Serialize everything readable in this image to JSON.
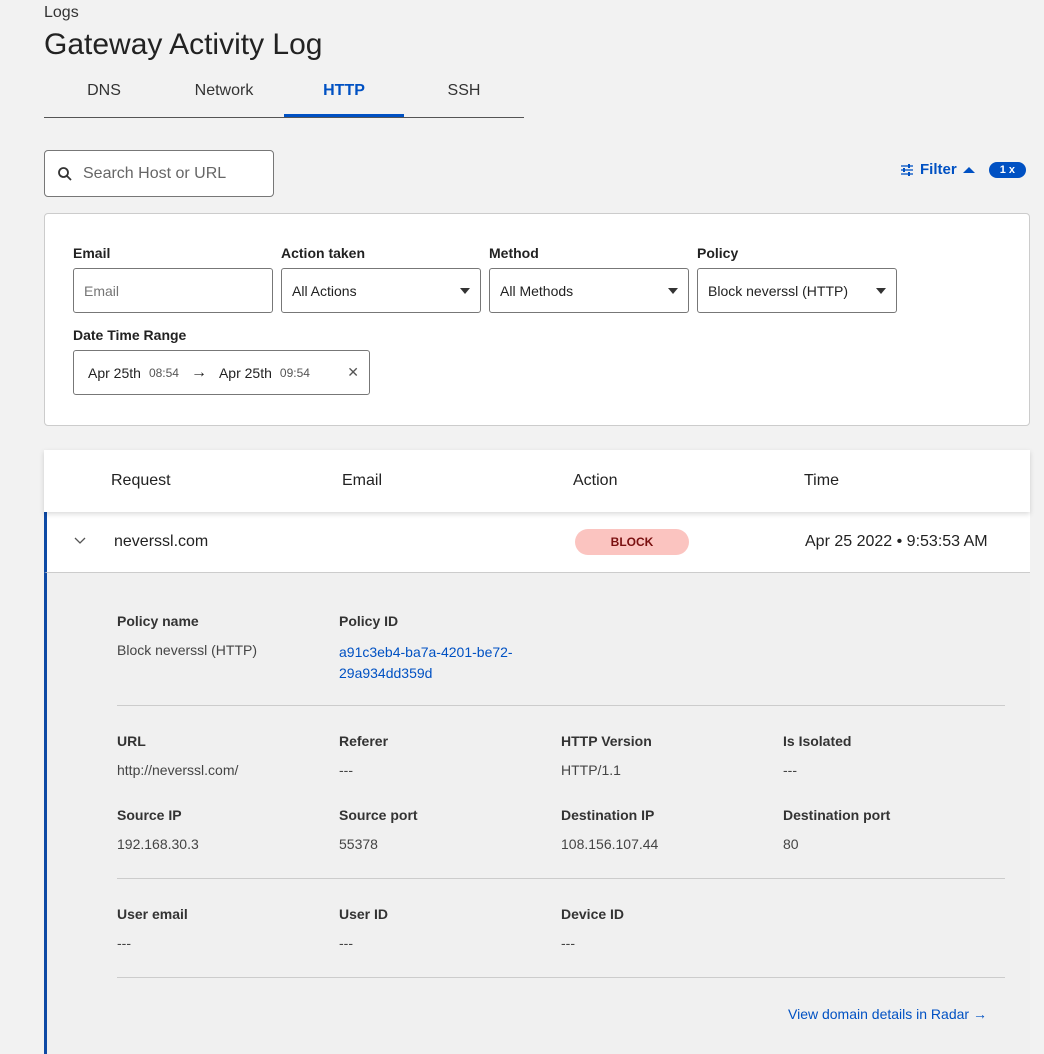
{
  "breadcrumb": "Logs",
  "title": "Gateway Activity Log",
  "tabs": [
    {
      "label": "DNS"
    },
    {
      "label": "Network"
    },
    {
      "label": "HTTP",
      "active": true
    },
    {
      "label": "SSH"
    }
  ],
  "search": {
    "placeholder": "Search Host or URL"
  },
  "filter": {
    "label": "Filter",
    "badge": "1 x"
  },
  "filters": {
    "email": {
      "label": "Email",
      "placeholder": "Email"
    },
    "action": {
      "label": "Action taken",
      "value": "All Actions"
    },
    "method": {
      "label": "Method",
      "value": "All Methods"
    },
    "policy": {
      "label": "Policy",
      "value": "Block neverssl (HTTP)"
    },
    "date": {
      "label": "Date Time Range",
      "start_date": "Apr 25th",
      "start_time": "08:54",
      "end_date": "Apr 25th",
      "end_time": "09:54"
    }
  },
  "table": {
    "columns": [
      "Request",
      "Email",
      "Action",
      "Time"
    ],
    "row": {
      "request": "neverssl.com",
      "email": "",
      "action": "BLOCK",
      "time": "Apr 25 2022 • 9:53:53 AM"
    }
  },
  "details": {
    "policy_name": {
      "label": "Policy name",
      "value": "Block neverssl (HTTP)"
    },
    "policy_id": {
      "label": "Policy ID",
      "line1": "a91c3eb4-ba7a-4201-be72-",
      "line2": "29a934dd359d"
    },
    "url": {
      "label": "URL",
      "value": "http://neverssl.com/"
    },
    "referer": {
      "label": "Referer",
      "value": "---"
    },
    "http_version": {
      "label": "HTTP Version",
      "value": "HTTP/1.1"
    },
    "is_isolated": {
      "label": "Is Isolated",
      "value": "---"
    },
    "source_ip": {
      "label": "Source IP",
      "value": "192.168.30.3"
    },
    "source_port": {
      "label": "Source port",
      "value": "55378"
    },
    "dest_ip": {
      "label": "Destination IP",
      "value": "108.156.107.44"
    },
    "dest_port": {
      "label": "Destination port",
      "value": "80"
    },
    "user_email": {
      "label": "User email",
      "value": "---"
    },
    "user_id": {
      "label": "User ID",
      "value": "---"
    },
    "device_id": {
      "label": "Device ID",
      "value": "---"
    },
    "radar_link": "View domain details in Radar →"
  },
  "colors": {
    "accent": "#0051c3",
    "block_bg": "#fbc4c0",
    "block_text": "#7a1010"
  }
}
